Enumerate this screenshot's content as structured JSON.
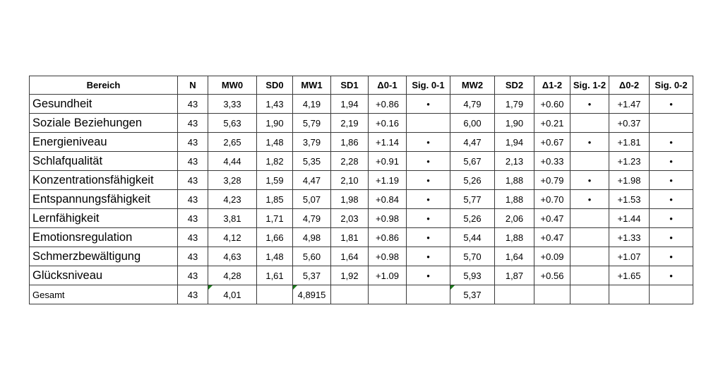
{
  "table": {
    "headers": [
      "Bereich",
      "N",
      "MW0",
      "SD0",
      "MW1",
      "SD1",
      "Δ0-1",
      "Sig. 0-1",
      "MW2",
      "SD2",
      "Δ1-2",
      "Sig. 1-2",
      "Δ0-2",
      "Sig. 0-2"
    ],
    "rows": [
      [
        "Gesundheit",
        "43",
        "3,33",
        "1,43",
        "4,19",
        "1,94",
        "+0.86",
        "•",
        "4,79",
        "1,79",
        "+0.60",
        "•",
        "+1.47",
        "•"
      ],
      [
        "Soziale Beziehungen",
        "43",
        "5,63",
        "1,90",
        "5,79",
        "2,19",
        "+0.16",
        "",
        "6,00",
        "1,90",
        "+0.21",
        "",
        "+0.37",
        ""
      ],
      [
        "Energieniveau",
        "43",
        "2,65",
        "1,48",
        "3,79",
        "1,86",
        "+1.14",
        "•",
        "4,47",
        "1,94",
        "+0.67",
        "•",
        "+1.81",
        "•"
      ],
      [
        "Schlafqualität",
        "43",
        "4,44",
        "1,82",
        "5,35",
        "2,28",
        "+0.91",
        "•",
        "5,67",
        "2,13",
        "+0.33",
        "",
        "+1.23",
        "•"
      ],
      [
        "Konzentrationsfähigkeit",
        "43",
        "3,28",
        "1,59",
        "4,47",
        "2,10",
        "+1.19",
        "•",
        "5,26",
        "1,88",
        "+0.79",
        "•",
        "+1.98",
        "•"
      ],
      [
        "Entspannungsfähigkeit",
        "43",
        "4,23",
        "1,85",
        "5,07",
        "1,98",
        "+0.84",
        "•",
        "5,77",
        "1,88",
        "+0.70",
        "•",
        "+1.53",
        "•"
      ],
      [
        "Lernfähigkeit",
        "43",
        "3,81",
        "1,71",
        "4,79",
        "2,03",
        "+0.98",
        "•",
        "5,26",
        "2,06",
        "+0.47",
        "",
        "+1.44",
        "•"
      ],
      [
        "Emotionsregulation",
        "43",
        "4,12",
        "1,66",
        "4,98",
        "1,81",
        "+0.86",
        "•",
        "5,44",
        "1,88",
        "+0.47",
        "",
        "+1.33",
        "•"
      ],
      [
        "Schmerzbewältigung",
        "43",
        "4,63",
        "1,48",
        "5,60",
        "1,64",
        "+0.98",
        "•",
        "5,70",
        "1,64",
        "+0.09",
        "",
        "+1.07",
        "•"
      ],
      [
        "Glücksniveau",
        "43",
        "4,28",
        "1,61",
        "5,37",
        "1,92",
        "+1.09",
        "•",
        "5,93",
        "1,87",
        "+0.56",
        "",
        "+1.65",
        "•"
      ]
    ],
    "total": [
      "Gesamt",
      "43",
      "4,01",
      "",
      "4,8915",
      "",
      "",
      "",
      "5,37",
      "",
      "",
      "",
      "",
      ""
    ],
    "colors": {
      "border": "#3a3a3a",
      "cell_flag": "#1a7a1a"
    }
  }
}
